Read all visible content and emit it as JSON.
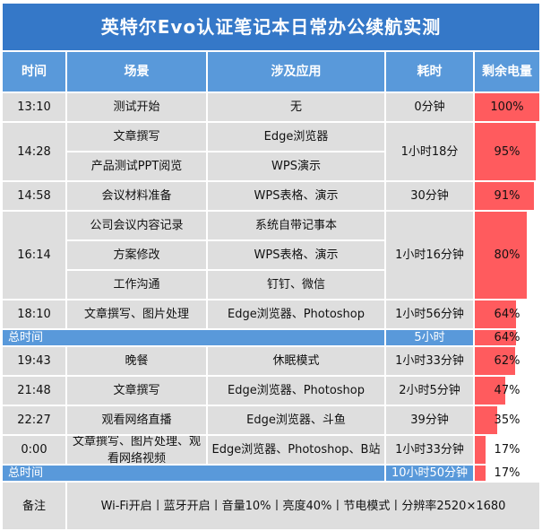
{
  "title": "英特尔Evo认证笔记本日常办公续航实测",
  "headers": [
    "时间",
    "场景",
    "涉及应用",
    "耗时",
    "剩余电量"
  ],
  "groups": [
    {
      "time": "13:10",
      "rows": [
        {
          "scene": "测试开始",
          "app": "无"
        }
      ],
      "duration": "0分钟",
      "battery": "100%"
    },
    {
      "time": "14:28",
      "rows": [
        {
          "scene": "文章撰写",
          "app": "Edge浏览器"
        },
        {
          "scene": "产品测试PPT阅览",
          "app": "WPS演示"
        }
      ],
      "duration": "1小时18分",
      "battery": "95%"
    },
    {
      "time": "14:58",
      "rows": [
        {
          "scene": "会议材料准备",
          "app": "WPS表格、演示"
        }
      ],
      "duration": "30分钟",
      "battery": "91%"
    },
    {
      "time": "16:14",
      "rows": [
        {
          "scene": "公司会议内容记录",
          "app": "系统自带记事本"
        },
        {
          "scene": "方案修改",
          "app": "WPS表格、演示"
        },
        {
          "scene": "工作沟通",
          "app": "钉钉、微信"
        }
      ],
      "duration": "1小时16分钟",
      "battery": "80%"
    },
    {
      "time": "18:10",
      "rows": [
        {
          "scene": "文章撰写、图片处理",
          "app": "Edge浏览器、Photoshop"
        }
      ],
      "duration": "1小时56分钟",
      "battery": "64%"
    },
    {
      "total": true,
      "label": "总时间",
      "duration": "5小时",
      "battery": "64%"
    },
    {
      "time": "19:43",
      "rows": [
        {
          "scene": "晚餐",
          "app": "休眠模式"
        }
      ],
      "duration": "1小时33分钟",
      "battery": "62%"
    },
    {
      "time": "21:48",
      "rows": [
        {
          "scene": "文章撰写",
          "app": "Edge浏览器、Photoshop"
        }
      ],
      "duration": "2小时5分钟",
      "battery": "47%"
    },
    {
      "time": "22:27",
      "rows": [
        {
          "scene": "观看网络直播",
          "app": "Edge浏览器、斗鱼"
        }
      ],
      "duration": "39分钟",
      "battery": "35%"
    },
    {
      "time": "0:00",
      "rows": [
        {
          "scene": "文章撰写、图片处理、观看网络视频",
          "app": "Edge浏览器、Photoshop、B站"
        }
      ],
      "duration": "1小时33分钟",
      "battery": "17%"
    },
    {
      "total": true,
      "label": "总时间",
      "duration": "10小时50分钟",
      "battery": "17%"
    }
  ],
  "footer": {
    "label": "备注",
    "text": "Wi-Fi开启丨蓝牙开启丨音量10%丨亮度40%丨节电模式丨分辨率2520×1680"
  },
  "colors": {
    "title_bg": "#3578c8",
    "header_bg": "#5999da",
    "cell_bg": "#dedede",
    "bar": "#ff5b5e"
  },
  "chart_data": {
    "type": "table",
    "title": "英特尔Evo认证笔记本日常办公续航实测",
    "columns": [
      "时间",
      "场景",
      "涉及应用",
      "耗时",
      "剩余电量"
    ],
    "bar_column": "剩余电量",
    "bar_values": [
      100,
      95,
      91,
      80,
      64,
      64,
      62,
      47,
      35,
      17,
      17
    ]
  }
}
